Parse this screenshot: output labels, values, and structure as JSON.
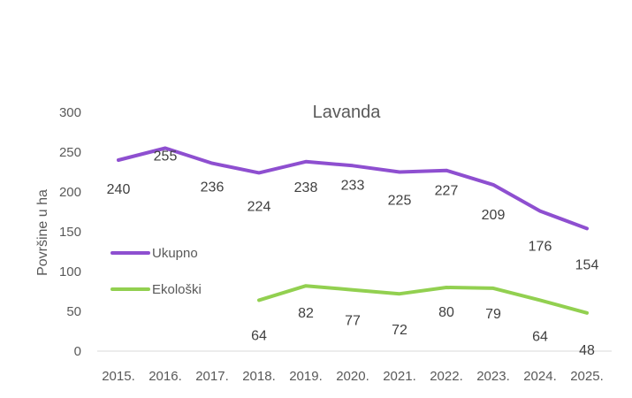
{
  "chart_data": {
    "type": "line",
    "title": "Lavanda",
    "xlabel": "",
    "ylabel": "Površine u ha",
    "ylim": [
      0,
      300
    ],
    "yticks": [
      "0",
      "50",
      "100",
      "150",
      "200",
      "250",
      "300"
    ],
    "grid": false,
    "legend_position": "left",
    "categories": [
      "2015.",
      "2016.",
      "2017.",
      "2018.",
      "2019.",
      "2020.",
      "2021.",
      "2022.",
      "2023.",
      "2024.",
      "2025."
    ],
    "series": [
      {
        "name": "Ukupno",
        "color": "#8E4FD0",
        "values": [
          240,
          255,
          236,
          224,
          238,
          233,
          225,
          227,
          209,
          176,
          154
        ]
      },
      {
        "name": "Ekološki",
        "color": "#92D050",
        "values": [
          null,
          null,
          null,
          64,
          82,
          77,
          72,
          80,
          79,
          64,
          48
        ]
      }
    ]
  }
}
